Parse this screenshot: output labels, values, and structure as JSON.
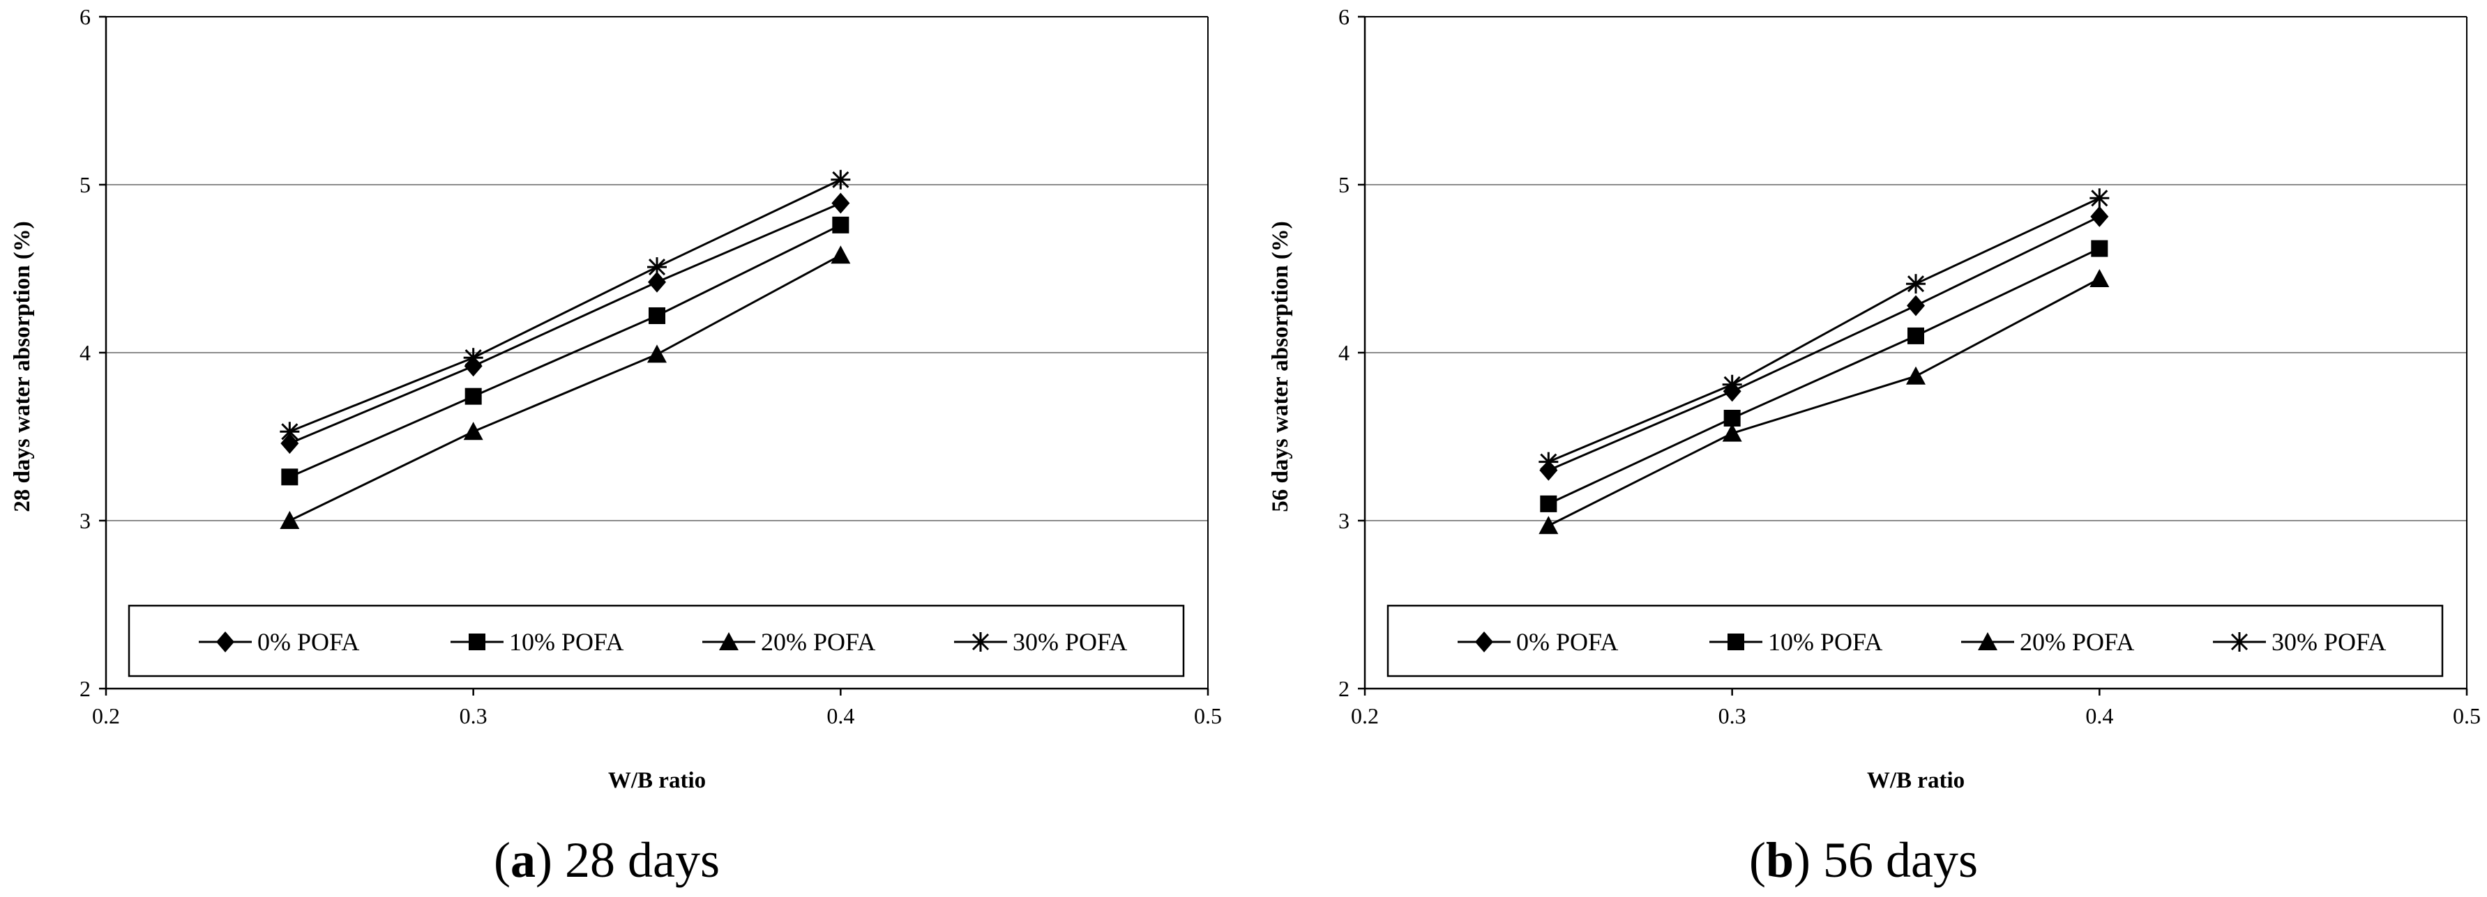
{
  "chart_data": [
    {
      "type": "line",
      "caption_letter": "a",
      "caption_text": "28 days",
      "xlabel": "W/B ratio",
      "ylabel": "28 days water absorption (%)",
      "xlim": [
        0.2,
        0.5
      ],
      "ylim": [
        2,
        6
      ],
      "xticks": [
        0.2,
        0.3,
        0.4,
        0.5
      ],
      "xtick_labels": [
        "0.2",
        "0.3",
        "0.4",
        "0.5"
      ],
      "yticks": [
        2,
        3,
        4,
        5,
        6
      ],
      "ytick_labels": [
        "2",
        "3",
        "4",
        "5",
        "6"
      ],
      "grid": "horizontal",
      "legend_placement": "bottom",
      "x": [
        0.25,
        0.3,
        0.35,
        0.4
      ],
      "series": [
        {
          "name": "0% POFA",
          "marker": "diamond",
          "values": [
            3.46,
            3.92,
            4.42,
            4.89
          ]
        },
        {
          "name": "10% POFA",
          "marker": "square",
          "values": [
            3.26,
            3.74,
            4.22,
            4.76
          ]
        },
        {
          "name": "20% POFA",
          "marker": "triangle",
          "values": [
            3.0,
            3.53,
            3.99,
            4.58
          ]
        },
        {
          "name": "30% POFA",
          "marker": "asterisk",
          "values": [
            3.53,
            3.97,
            4.51,
            5.03
          ]
        }
      ]
    },
    {
      "type": "line",
      "caption_letter": "b",
      "caption_text": "56 days",
      "xlabel": "W/B ratio",
      "ylabel": "56 days water absorption (%)",
      "xlim": [
        0.2,
        0.5
      ],
      "ylim": [
        2,
        6
      ],
      "xticks": [
        0.2,
        0.3,
        0.4,
        0.5
      ],
      "xtick_labels": [
        "0.2",
        "0.3",
        "0.4",
        "0.5"
      ],
      "yticks": [
        2,
        3,
        4,
        5,
        6
      ],
      "ytick_labels": [
        "2",
        "3",
        "4",
        "5",
        "6"
      ],
      "grid": "horizontal",
      "legend_placement": "bottom",
      "x": [
        0.25,
        0.3,
        0.35,
        0.4
      ],
      "series": [
        {
          "name": "0% POFA",
          "marker": "diamond",
          "values": [
            3.3,
            3.77,
            4.28,
            4.81
          ]
        },
        {
          "name": "10% POFA",
          "marker": "square",
          "values": [
            3.1,
            3.61,
            4.1,
            4.62
          ]
        },
        {
          "name": "20% POFA",
          "marker": "triangle",
          "values": [
            2.97,
            3.52,
            3.86,
            4.44
          ]
        },
        {
          "name": "30% POFA",
          "marker": "asterisk",
          "values": [
            3.35,
            3.81,
            4.41,
            4.92
          ]
        }
      ]
    }
  ]
}
